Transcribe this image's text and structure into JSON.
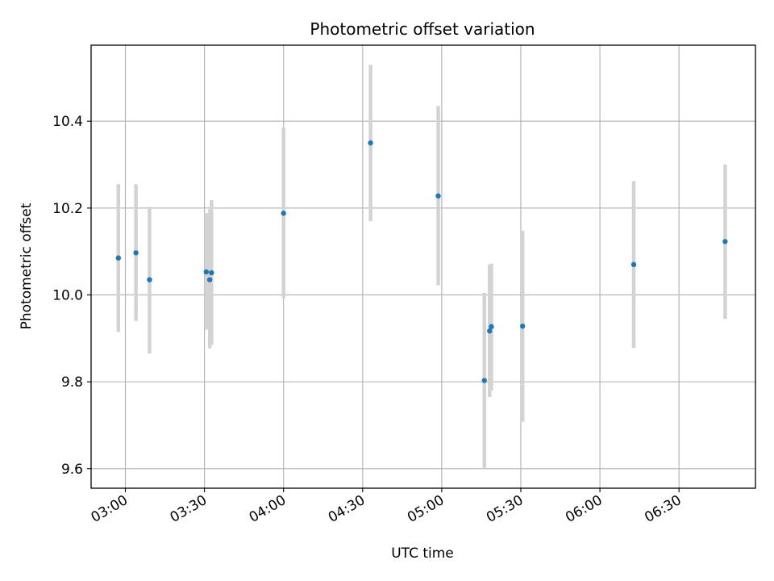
{
  "chart_data": {
    "type": "scatter",
    "title": "Photometric offset variation",
    "xlabel": "UTC time",
    "ylabel": "Photometric offset",
    "x_is_time": true,
    "xlim": [
      "02:47",
      "06:59"
    ],
    "ylim": [
      9.555,
      10.575
    ],
    "grid": true,
    "x_ticks": [
      "03:00",
      "03:30",
      "04:00",
      "04:30",
      "05:00",
      "05:30",
      "06:00",
      "06:30"
    ],
    "y_ticks": [
      9.6,
      9.8,
      10.0,
      10.2,
      10.4
    ],
    "y_tick_labels": [
      "9.6",
      "9.8",
      "10.0",
      "10.2",
      "10.4"
    ],
    "colors": {
      "marker": "#1f77b4",
      "errorbar": "#d3d3d3",
      "grid": "#b0b0b0"
    },
    "points": [
      {
        "x": "02:57:20",
        "y": 10.085,
        "yerr_low": 9.915,
        "yerr_high": 10.255
      },
      {
        "x": "03:04:00",
        "y": 10.097,
        "yerr_low": 9.94,
        "yerr_high": 10.255
      },
      {
        "x": "03:09:10",
        "y": 10.035,
        "yerr_low": 9.865,
        "yerr_high": 10.203
      },
      {
        "x": "03:30:40",
        "y": 10.053,
        "yerr_low": 9.92,
        "yerr_high": 10.188
      },
      {
        "x": "03:32:00",
        "y": 10.035,
        "yerr_low": 9.877,
        "yerr_high": 10.197
      },
      {
        "x": "03:32:40",
        "y": 10.051,
        "yerr_low": 9.885,
        "yerr_high": 10.218
      },
      {
        "x": "04:00:00",
        "y": 10.188,
        "yerr_low": 9.993,
        "yerr_high": 10.385
      },
      {
        "x": "04:33:00",
        "y": 10.35,
        "yerr_low": 10.17,
        "yerr_high": 10.53
      },
      {
        "x": "04:58:40",
        "y": 10.228,
        "yerr_low": 10.022,
        "yerr_high": 10.435
      },
      {
        "x": "05:16:10",
        "y": 9.803,
        "yerr_low": 9.602,
        "yerr_high": 10.005
      },
      {
        "x": "05:18:10",
        "y": 9.917,
        "yerr_low": 9.765,
        "yerr_high": 10.07
      },
      {
        "x": "05:18:50",
        "y": 9.927,
        "yerr_low": 9.78,
        "yerr_high": 10.072
      },
      {
        "x": "05:30:40",
        "y": 9.928,
        "yerr_low": 9.708,
        "yerr_high": 10.148
      },
      {
        "x": "06:12:50",
        "y": 10.07,
        "yerr_low": 9.878,
        "yerr_high": 10.262
      },
      {
        "x": "06:47:30",
        "y": 10.123,
        "yerr_low": 9.945,
        "yerr_high": 10.3
      }
    ]
  }
}
